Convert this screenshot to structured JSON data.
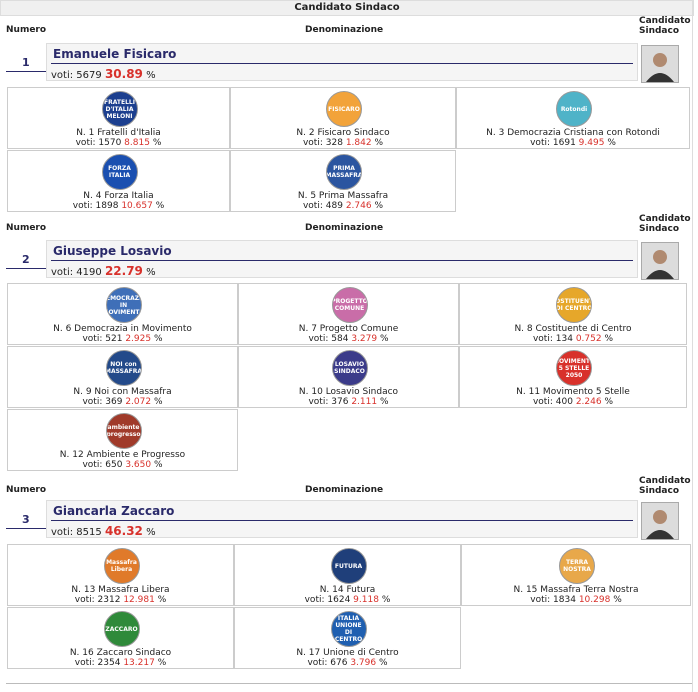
{
  "page_title": "Candidato Sindaco",
  "headers": {
    "numero": "Numero",
    "denominazione": "Denominazione",
    "candidato": "Candidato Sindaco"
  },
  "pct_symbol": "%",
  "votes_prefix": "voti:",
  "colors": {
    "accent_red": "#d8312b",
    "navy": "#2a2a6a"
  },
  "candidates": [
    {
      "numero": "1",
      "name": "Emanuele Fisicaro",
      "votes": "5679",
      "pct": "30.89",
      "lists": [
        {
          "label": "N. 1 Fratelli d'Italia",
          "votes": "1570",
          "pct": "8.815",
          "logo_text": "FRATELLI D'ITALIA MELONI",
          "logo_color": "#1c3f8f"
        },
        {
          "label": "N. 2 Fisicaro Sindaco",
          "votes": "328",
          "pct": "1.842",
          "logo_text": "FISICARO",
          "logo_color": "#f2a33a"
        },
        {
          "label": "N. 3 Democrazia Cristiana con Rotondi",
          "votes": "1691",
          "pct": "9.495",
          "logo_text": "Rotondi",
          "logo_color": "#4fb3c8"
        },
        {
          "label": "N. 4 Forza Italia",
          "votes": "1898",
          "pct": "10.657",
          "logo_text": "FORZA ITALIA",
          "logo_color": "#1a4fb0"
        },
        {
          "label": "N. 5 Prima Massafra",
          "votes": "489",
          "pct": "2.746",
          "logo_text": "PRIMA MASSAFRA",
          "logo_color": "#2b55a0"
        }
      ]
    },
    {
      "numero": "2",
      "name": "Giuseppe Losavio",
      "votes": "4190",
      "pct": "22.79",
      "lists": [
        {
          "label": "N. 6 Democrazia in Movimento",
          "votes": "521",
          "pct": "2.925",
          "logo_text": "DEMOCRAZIA IN MOVIMENTO",
          "logo_color": "#3f6fb8"
        },
        {
          "label": "N. 7 Progetto Comune",
          "votes": "584",
          "pct": "3.279",
          "logo_text": "PROGETTO COMUNE",
          "logo_color": "#c96da8"
        },
        {
          "label": "N. 8 Costituente di Centro",
          "votes": "134",
          "pct": "0.752",
          "logo_text": "COSTITUENTE DI CENTRO",
          "logo_color": "#e6a72a"
        },
        {
          "label": "N. 9 Noi con Massafra",
          "votes": "369",
          "pct": "2.072",
          "logo_text": "NOI con MASSAFRA",
          "logo_color": "#234a8a"
        },
        {
          "label": "N. 10 Losavio Sindaco",
          "votes": "376",
          "pct": "2.111",
          "logo_text": "LOSAVIO SINDACO",
          "logo_color": "#3b3b8a"
        },
        {
          "label": "N. 11 Movimento 5 Stelle",
          "votes": "400",
          "pct": "2.246",
          "logo_text": "MOVIMENTO 5 STELLE 2050",
          "logo_color": "#d8312b"
        },
        {
          "label": "N. 12 Ambiente e Progresso",
          "votes": "650",
          "pct": "3.650",
          "logo_text": "ambiente progresso",
          "logo_color": "#a03a2a"
        }
      ]
    },
    {
      "numero": "3",
      "name": "Giancarla Zaccaro",
      "votes": "8515",
      "pct": "46.32",
      "lists": [
        {
          "label": "N. 13 Massafra Libera",
          "votes": "2312",
          "pct": "12.981",
          "logo_text": "Massafra Libera",
          "logo_color": "#e07a2a"
        },
        {
          "label": "N. 14 Futura",
          "votes": "1624",
          "pct": "9.118",
          "logo_text": "FUTURA",
          "logo_color": "#1f3f7a"
        },
        {
          "label": "N. 15 Massafra Terra Nostra",
          "votes": "1834",
          "pct": "10.298",
          "logo_text": "TERRA NOSTRA",
          "logo_color": "#e8a84a"
        },
        {
          "label": "N. 16 Zaccaro Sindaco",
          "votes": "2354",
          "pct": "13.217",
          "logo_text": "ZACCARO",
          "logo_color": "#2f8a3a"
        },
        {
          "label": "N. 17 Unione di Centro",
          "votes": "676",
          "pct": "3.796",
          "logo_text": "ITALIA UNIONE DI CENTRO",
          "logo_color": "#1f5fb0"
        }
      ]
    }
  ]
}
